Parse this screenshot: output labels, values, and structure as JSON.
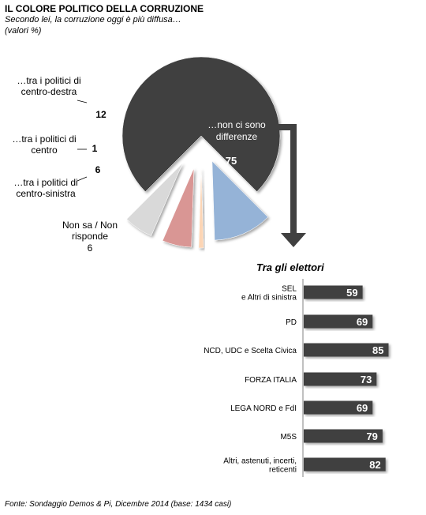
{
  "title": "IL COLORE POLITICO DELLA CORRUZIONE",
  "subtitle": "Secondo lei, la corruzione oggi è più diffusa…",
  "units": "(valori %)",
  "source": "Fonte: Sondaggio Demos & Pi, Dicembre 2014 (base: 1434 casi)",
  "colors": {
    "dark": "#404040",
    "blue": "#95b3d7",
    "peach": "#fcd5b5",
    "red": "#d99694",
    "grey": "#d9d9d9"
  },
  "chart_data": [
    {
      "type": "pie",
      "title": "",
      "slices": [
        {
          "label_lines": [
            "…non ci sono",
            "differenze"
          ],
          "value": 75,
          "value_text": "75",
          "color": "#404040"
        },
        {
          "label_lines": [
            "…tra i politici di",
            "centro-destra"
          ],
          "value": 12,
          "value_text": "12",
          "color": "#95b3d7"
        },
        {
          "label_lines": [
            "…tra i politici di",
            "centro"
          ],
          "value": 1,
          "value_text": "1",
          "color": "#fcd5b5"
        },
        {
          "label_lines": [
            "…tra i politici di",
            "centro-sinistra"
          ],
          "value": 6,
          "value_text": "6",
          "color": "#d99694"
        },
        {
          "label_lines": [
            "Non sa / Non",
            "risponde"
          ],
          "value": 6,
          "value_text": "6",
          "color": "#d9d9d9"
        }
      ]
    },
    {
      "type": "bar",
      "orientation": "horizontal",
      "title": "Tra gli elettori",
      "xlim": [
        0,
        100
      ],
      "categories": [
        [
          "SEL",
          "e Altri di sinistra"
        ],
        [
          "PD"
        ],
        [
          "NCD, UDC e Scelta Civica"
        ],
        [
          "FORZA ITALIA"
        ],
        [
          "LEGA NORD e FdI"
        ],
        [
          "M5S"
        ],
        [
          "Altri, astenuti, incerti,",
          "reticenti"
        ]
      ],
      "values": [
        59,
        69,
        85,
        73,
        69,
        79,
        82
      ],
      "value_texts": [
        "59",
        "69",
        "85",
        "73",
        "69",
        "79",
        "82"
      ],
      "color": "#404040"
    }
  ]
}
